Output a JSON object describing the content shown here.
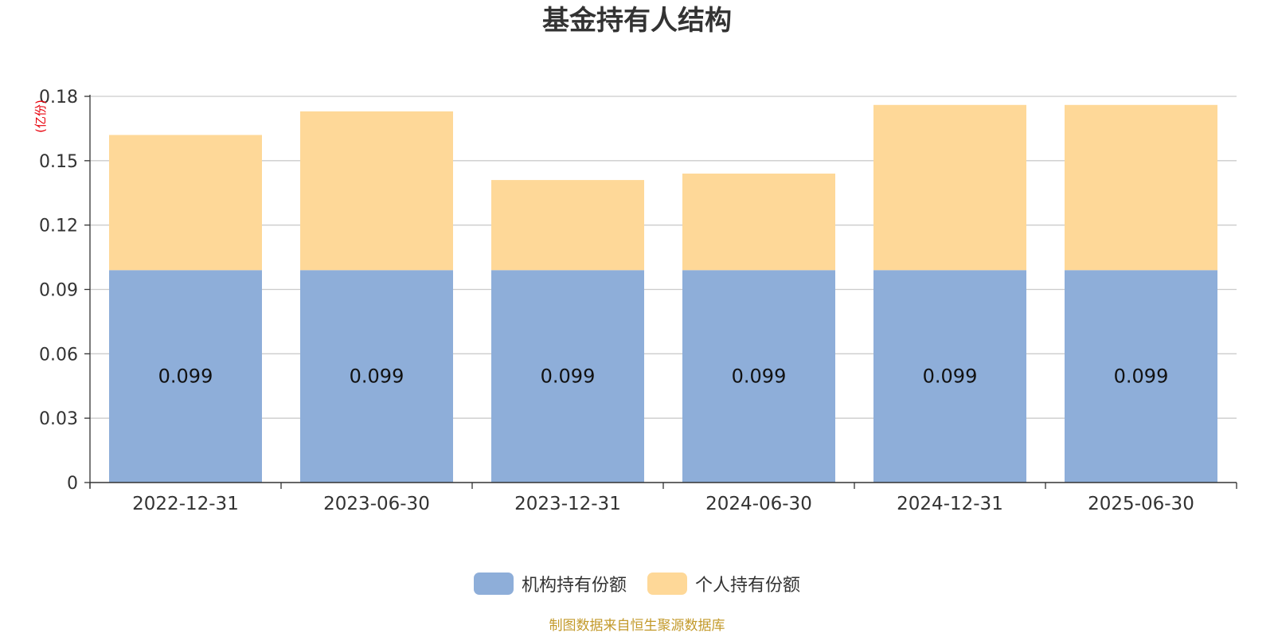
{
  "title": "基金持有人结构",
  "footer": "制图数据来自恒生聚源数据库",
  "colors": {
    "institutional": "#8eaed9",
    "individual": "#fed898",
    "footer": "#c39a2b",
    "unit": "#e8000b",
    "grid": "#cccccc",
    "axis": "#333333"
  },
  "chart_data": {
    "type": "bar",
    "stacked": true,
    "title": "基金持有人结构",
    "ylabel": "(亿份)",
    "xlabel": "",
    "categories": [
      "2022-12-31",
      "2023-06-30",
      "2023-12-31",
      "2024-06-30",
      "2024-12-31",
      "2025-06-30"
    ],
    "series": [
      {
        "name": "机构持有份额",
        "values": [
          0.099,
          0.099,
          0.099,
          0.099,
          0.099,
          0.099
        ],
        "color": "#8eaed9",
        "data_labels": [
          "0.099",
          "0.099",
          "0.099",
          "0.099",
          "0.099",
          "0.099"
        ]
      },
      {
        "name": "个人持有份额",
        "values": [
          0.063,
          0.074,
          0.042,
          0.045,
          0.077,
          0.077
        ],
        "color": "#fed898"
      }
    ],
    "ylim": [
      0,
      0.18
    ],
    "yticks": [
      "0",
      "0.03",
      "0.06",
      "0.09",
      "0.12",
      "0.15",
      "0.18"
    ],
    "grid": true,
    "legend_position": "bottom-center"
  }
}
